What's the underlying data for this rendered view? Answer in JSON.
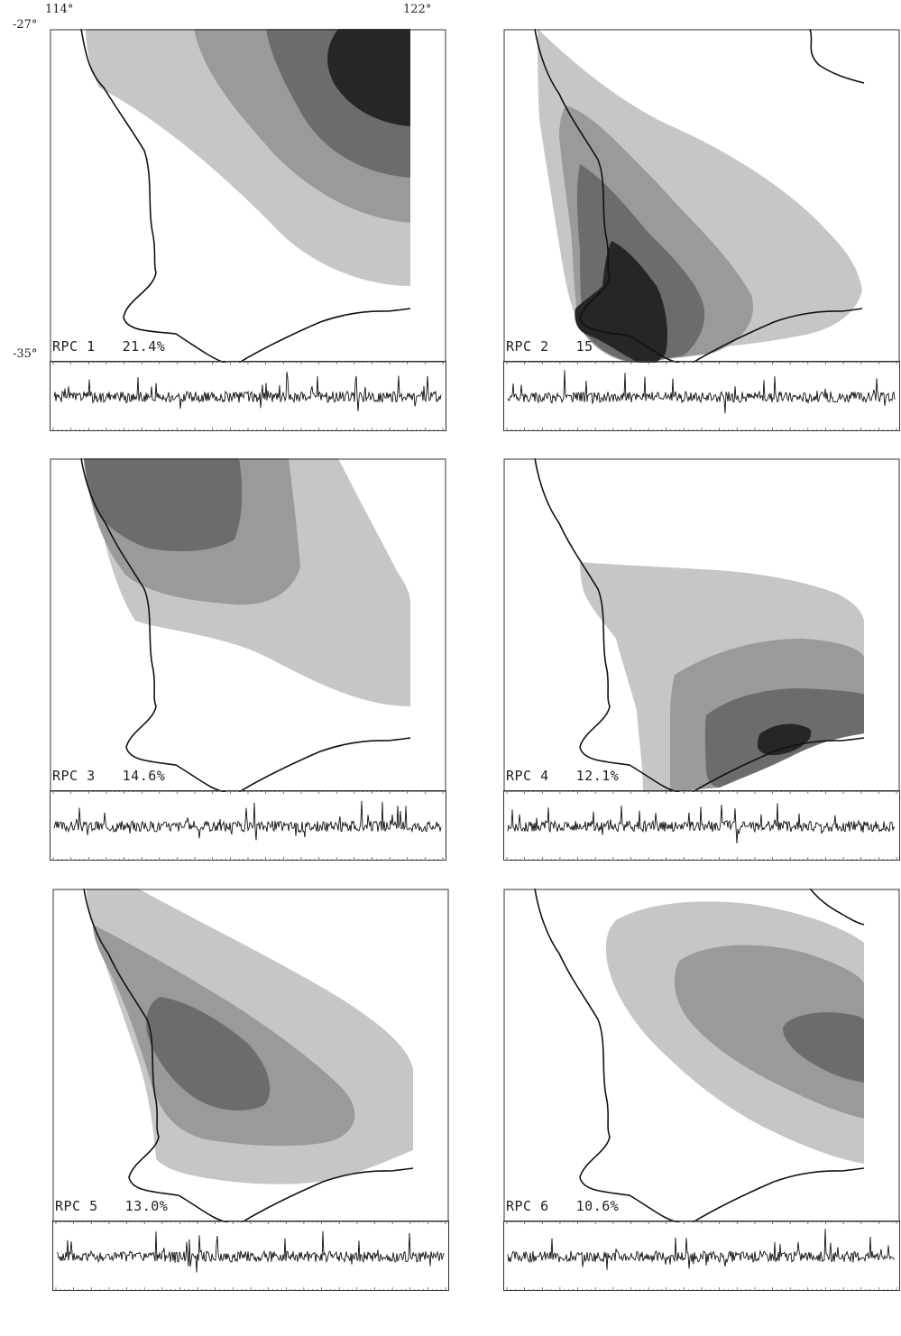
{
  "figure": {
    "coords": {
      "lon_left": "114°",
      "lon_right": "122°",
      "lat_top": "-27°",
      "lat_bottom": "-35°"
    },
    "panels": [
      {
        "id": "rpc1",
        "label": "RPC 1",
        "variance": "21.4%"
      },
      {
        "id": "rpc2",
        "label": "RPC 2",
        "variance": "15"
      },
      {
        "id": "rpc3",
        "label": "RPC 3",
        "variance": "14.6%"
      },
      {
        "id": "rpc4",
        "label": "RPC 4",
        "variance": "12.1%"
      },
      {
        "id": "rpc5",
        "label": "RPC 5",
        "variance": "13.0%"
      },
      {
        "id": "rpc6",
        "label": "RPC 6",
        "variance": "10.6%"
      }
    ],
    "colors": {
      "level1": "#c6c6c6",
      "level2": "#9a9a9a",
      "level3": "#6c6c6c",
      "level4": "#262626",
      "coast": "#111111"
    }
  }
}
